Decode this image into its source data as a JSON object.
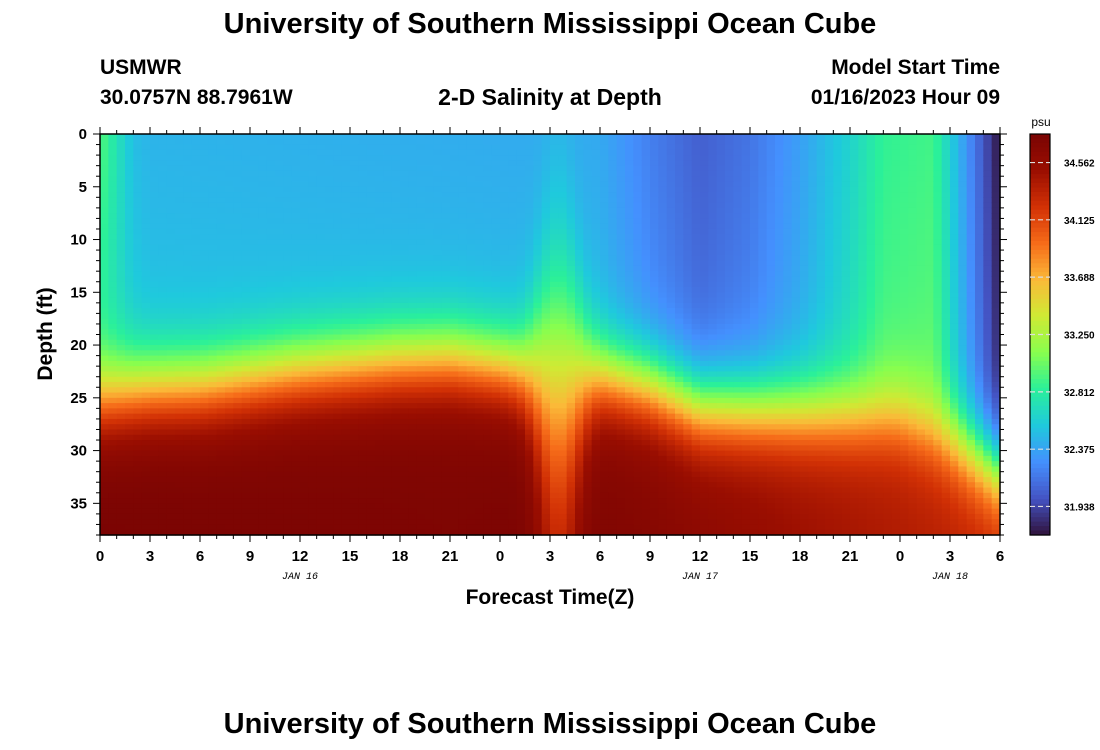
{
  "titles": {
    "main": "University of Southern Mississippi Ocean Cube",
    "footer": "University of Southern Mississippi Ocean Cube"
  },
  "station": {
    "name": "USMWR",
    "coords": "30.0757N  88.7961W"
  },
  "model": {
    "label": "Model Start Time",
    "start": "01/16/2023 Hour 09"
  },
  "chart_data": {
    "type": "heatmap",
    "title": "2-D Salinity at Depth",
    "xlabel": "Forecast Time(Z)",
    "ylabel": "Depth (ft)",
    "x_ticks": [
      "0",
      "3",
      "6",
      "9",
      "12",
      "15",
      "18",
      "21",
      "0",
      "3",
      "6",
      "9",
      "12",
      "15",
      "18",
      "21",
      "0",
      "3",
      "6"
    ],
    "date_labels": [
      {
        "label": "JAN 16",
        "hour_index": 12
      },
      {
        "label": "JAN 17",
        "hour_index": 36
      },
      {
        "label": "JAN 18",
        "hour_index": 51
      }
    ],
    "x_range_hours": [
      0,
      54
    ],
    "y_ticks": [
      0,
      5,
      10,
      15,
      20,
      25,
      30,
      35
    ],
    "ylim": [
      0,
      38
    ],
    "colorbar": {
      "unit": "psu",
      "ticks": [
        34.562,
        34.125,
        33.688,
        33.25,
        32.812,
        32.375,
        31.938
      ],
      "min": 31.72,
      "max": 34.78
    },
    "colors": [
      "#30123b",
      "#4454c4",
      "#4490fe",
      "#1fc9dd",
      "#2af09a",
      "#88fe4e",
      "#cfea34",
      "#fbb938",
      "#f66b19",
      "#d23105",
      "#9a0e01",
      "#7a0403"
    ],
    "grid": false
  }
}
